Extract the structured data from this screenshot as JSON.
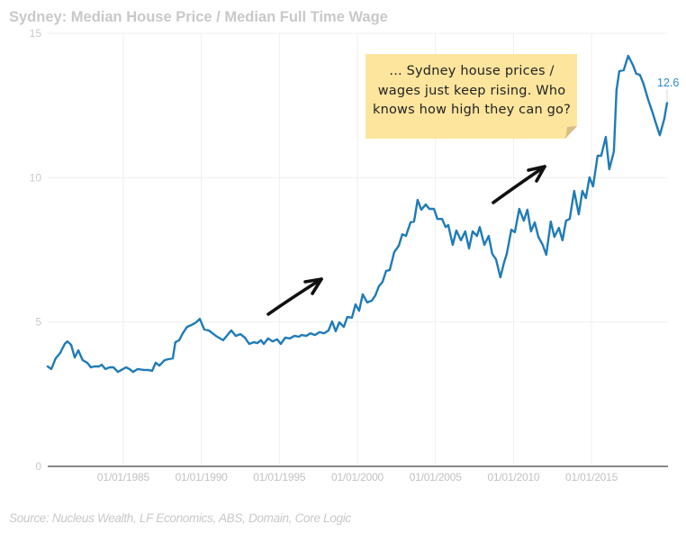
{
  "chart_data": {
    "type": "line",
    "title": "Sydney: Median House Price / Median Full Time Wage",
    "xlabel": "",
    "ylabel": "",
    "xlim": [
      1980.16,
      2019.84
    ],
    "ylim": [
      0,
      15
    ],
    "grid": true,
    "legend": "none",
    "yticks": [
      {
        "value": 0,
        "label": "0"
      },
      {
        "value": 5,
        "label": "5"
      },
      {
        "value": 10,
        "label": "10"
      },
      {
        "value": 15,
        "label": "15"
      }
    ],
    "xticks": [
      {
        "value": 1985,
        "label": "01/01/1985"
      },
      {
        "value": 1990,
        "label": "01/01/1990"
      },
      {
        "value": 1995,
        "label": "01/01/1995"
      },
      {
        "value": 2000,
        "label": "01/01/2000"
      },
      {
        "value": 2005,
        "label": "01/01/2005"
      },
      {
        "value": 2010,
        "label": "01/01/2010"
      },
      {
        "value": 2015,
        "label": "01/01/2015"
      }
    ],
    "x": [
      1980.16,
      1980.39,
      1980.67,
      1980.96,
      1981.25,
      1981.42,
      1981.66,
      1981.89,
      1982.12,
      1982.4,
      1982.69,
      1982.92,
      1983.15,
      1983.44,
      1983.62,
      1983.85,
      1984.13,
      1984.37,
      1984.65,
      1984.88,
      1985.17,
      1985.4,
      1985.63,
      1985.92,
      1986.33,
      1986.61,
      1986.85,
      1987.08,
      1987.31,
      1987.65,
      1987.88,
      1988.17,
      1988.34,
      1988.58,
      1988.81,
      1989.09,
      1989.38,
      1989.67,
      1989.9,
      1990.19,
      1990.48,
      1990.94,
      1991.4,
      1991.92,
      1992.21,
      1992.5,
      1992.79,
      1993.07,
      1993.36,
      1993.59,
      1993.82,
      1994.0,
      1994.28,
      1994.57,
      1994.86,
      1995.09,
      1995.38,
      1995.67,
      1995.96,
      1996.25,
      1996.42,
      1996.71,
      1997.0,
      1997.28,
      1997.57,
      1997.86,
      1998.15,
      1998.38,
      1998.61,
      1998.84,
      1999.13,
      1999.36,
      1999.65,
      1999.88,
      2000.11,
      2000.34,
      2000.63,
      2000.92,
      2001.15,
      2001.38,
      2001.61,
      2001.84,
      2002.07,
      2002.36,
      2002.65,
      2002.88,
      2003.11,
      2003.4,
      2003.63,
      2003.86,
      2004.09,
      2004.38,
      2004.61,
      2004.9,
      2005.13,
      2005.42,
      2005.65,
      2005.82,
      2006.11,
      2006.34,
      2006.63,
      2006.91,
      2007.15,
      2007.38,
      2007.66,
      2007.84,
      2008.13,
      2008.41,
      2008.64,
      2008.88,
      2009.16,
      2009.39,
      2009.57,
      2009.86,
      2010.09,
      2010.37,
      2010.66,
      2010.89,
      2011.12,
      2011.36,
      2011.59,
      2011.87,
      2012.1,
      2012.39,
      2012.62,
      2012.91,
      2013.14,
      2013.37,
      2013.6,
      2013.89,
      2014.18,
      2014.41,
      2014.64,
      2014.87,
      2015.1,
      2015.39,
      2015.62,
      2015.91,
      2016.14,
      2016.43,
      2016.6,
      2016.78,
      2017.06,
      2017.35,
      2017.64,
      2017.87,
      2018.1,
      2018.33,
      2018.62,
      2018.91,
      2019.14,
      2019.37,
      2019.66,
      2019.84
    ],
    "series": [
      {
        "name": "Median House Price / Median Full Time Wage",
        "color": "#1f7bb8",
        "values": [
          3.46,
          3.37,
          3.74,
          3.93,
          4.24,
          4.33,
          4.21,
          3.77,
          4.02,
          3.68,
          3.59,
          3.43,
          3.46,
          3.46,
          3.52,
          3.37,
          3.43,
          3.43,
          3.27,
          3.34,
          3.43,
          3.37,
          3.27,
          3.37,
          3.34,
          3.34,
          3.31,
          3.59,
          3.49,
          3.68,
          3.71,
          3.74,
          4.3,
          4.37,
          4.61,
          4.83,
          4.9,
          4.99,
          5.11,
          4.74,
          4.71,
          4.52,
          4.37,
          4.71,
          4.52,
          4.58,
          4.46,
          4.24,
          4.3,
          4.27,
          4.37,
          4.24,
          4.43,
          4.33,
          4.4,
          4.24,
          4.46,
          4.43,
          4.52,
          4.49,
          4.55,
          4.52,
          4.61,
          4.55,
          4.65,
          4.61,
          4.71,
          5.02,
          4.68,
          4.99,
          4.83,
          5.18,
          5.15,
          5.61,
          5.39,
          5.96,
          5.68,
          5.74,
          5.92,
          6.24,
          6.39,
          6.77,
          6.8,
          7.42,
          7.64,
          8.04,
          7.98,
          8.45,
          8.48,
          9.23,
          8.89,
          9.07,
          8.92,
          8.92,
          8.57,
          8.57,
          8.29,
          8.36,
          7.67,
          8.17,
          7.83,
          8.14,
          7.55,
          8.14,
          7.98,
          8.29,
          7.67,
          7.98,
          7.36,
          7.17,
          6.55,
          7.05,
          7.36,
          8.2,
          8.11,
          8.92,
          8.51,
          8.89,
          8.14,
          8.45,
          7.95,
          7.67,
          7.33,
          8.48,
          7.95,
          8.26,
          7.83,
          8.51,
          8.57,
          9.54,
          8.73,
          9.54,
          9.29,
          10.01,
          9.7,
          10.76,
          10.76,
          11.41,
          10.29,
          10.91,
          13.03,
          13.69,
          13.72,
          14.22,
          13.91,
          13.6,
          13.56,
          13.25,
          12.72,
          12.25,
          11.85,
          11.47,
          12.04,
          12.6
        ]
      }
    ],
    "data_labels": [
      {
        "series": 0,
        "point": "last",
        "label": "12.6",
        "color": "#2a8ac8"
      }
    ],
    "annotations": {
      "note_lines": [
        "... Sydney house prices /",
        "wages just keep rising. Who",
        "knows how high they can go?"
      ],
      "note_color": "#fde59d",
      "arrows": [
        "arrow-up-right",
        "arrow-up-right"
      ]
    },
    "source": "Source: Nucleus Wealth, LF Economics, ABS, Domain, Core Logic"
  }
}
